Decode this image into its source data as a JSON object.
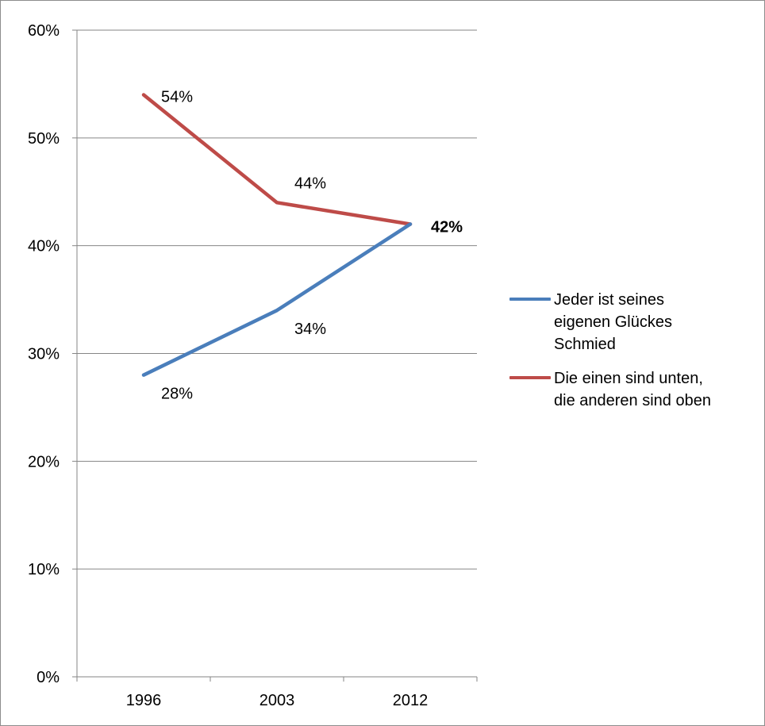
{
  "chart_data": {
    "type": "line",
    "title": "",
    "xlabel": "",
    "ylabel": "",
    "categories": [
      "1996",
      "2003",
      "2012"
    ],
    "ylim": [
      0,
      60
    ],
    "yticks": [
      "0%",
      "10%",
      "20%",
      "30%",
      "40%",
      "50%",
      "60%"
    ],
    "grid": true,
    "legend_position": "right",
    "series": [
      {
        "name": "Jeder ist seines eigenen Glückes Schmied",
        "legend_lines": [
          "Jeder ist seines",
          "eigenen Glückes",
          "Schmied"
        ],
        "color": "#4a7ebb",
        "values": [
          28,
          34,
          42
        ],
        "labels": [
          "28%",
          "34%",
          "42%"
        ]
      },
      {
        "name": "Die einen sind unten, die anderen sind oben",
        "legend_lines": [
          "Die einen sind unten,",
          "die anderen sind oben"
        ],
        "color": "#be4b48",
        "values": [
          54,
          44,
          42
        ],
        "labels": [
          "54%",
          "44%",
          ""
        ]
      }
    ]
  }
}
